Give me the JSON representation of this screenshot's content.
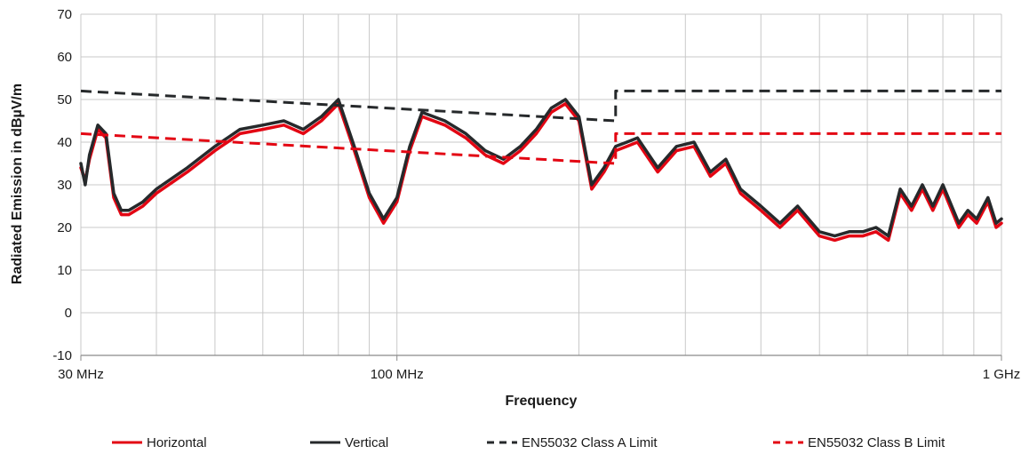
{
  "chart_data": {
    "type": "line",
    "title": "",
    "xlabel": "Frequency",
    "ylabel": "Radiated Emission in dBµV/m",
    "x_scale": "log",
    "xlim": [
      30,
      1000
    ],
    "ylim": [
      -10,
      70
    ],
    "grid": true,
    "legend_position": "bottom",
    "y_ticks": [
      -10,
      0,
      10,
      20,
      30,
      40,
      50,
      60,
      70
    ],
    "x_tick_labels": [
      {
        "value": 30,
        "label": "30 MHz"
      },
      {
        "value": 100,
        "label": "100 MHz"
      },
      {
        "value": 1000,
        "label": "1 GHz"
      }
    ],
    "x_minor_grid": [
      40,
      50,
      60,
      70,
      80,
      90,
      200,
      300,
      400,
      500,
      600,
      700,
      800,
      900
    ],
    "series": [
      {
        "name": "Horizontal",
        "color": "#e30613",
        "style": "solid",
        "x": [
          30,
          30.5,
          31,
          32,
          33,
          34,
          35,
          36,
          38,
          40,
          45,
          50,
          55,
          60,
          65,
          70,
          75,
          80,
          85,
          90,
          95,
          100,
          105,
          110,
          120,
          130,
          140,
          150,
          160,
          170,
          180,
          190,
          200,
          210,
          220,
          230,
          240,
          250,
          270,
          290,
          310,
          330,
          350,
          370,
          400,
          430,
          460,
          500,
          530,
          560,
          590,
          620,
          650,
          680,
          710,
          740,
          770,
          800,
          850,
          880,
          910,
          950,
          980,
          1000
        ],
        "y": [
          34,
          31,
          36,
          43,
          41,
          27,
          23,
          23,
          25,
          28,
          33,
          38,
          42,
          43,
          44,
          42,
          45,
          49,
          38,
          27,
          21,
          26,
          38,
          46,
          44,
          41,
          37,
          35,
          38,
          42,
          47,
          49,
          45,
          29,
          33,
          38,
          39,
          40,
          33,
          38,
          39,
          32,
          35,
          28,
          24,
          20,
          24,
          18,
          17,
          18,
          18,
          19,
          17,
          28,
          24,
          29,
          24,
          29,
          20,
          23,
          21,
          26,
          20,
          21
        ]
      },
      {
        "name": "Vertical",
        "color": "#26292b",
        "style": "solid",
        "x": [
          30,
          30.5,
          31,
          32,
          33,
          34,
          35,
          36,
          38,
          40,
          45,
          50,
          55,
          60,
          65,
          70,
          75,
          80,
          85,
          90,
          95,
          100,
          105,
          110,
          120,
          130,
          140,
          150,
          160,
          170,
          180,
          190,
          200,
          210,
          220,
          230,
          240,
          250,
          270,
          290,
          310,
          330,
          350,
          370,
          400,
          430,
          460,
          500,
          530,
          560,
          590,
          620,
          650,
          680,
          710,
          740,
          770,
          800,
          850,
          880,
          910,
          950,
          980,
          1000
        ],
        "y": [
          35,
          30,
          37,
          44,
          42,
          28,
          24,
          24,
          26,
          29,
          34,
          39,
          43,
          44,
          45,
          43,
          46,
          50,
          39,
          28,
          22,
          27,
          39,
          47,
          45,
          42,
          38,
          36,
          39,
          43,
          48,
          50,
          46,
          30,
          34,
          39,
          40,
          41,
          34,
          39,
          40,
          33,
          36,
          29,
          25,
          21,
          25,
          19,
          18,
          19,
          19,
          20,
          18,
          29,
          25,
          30,
          25,
          30,
          21,
          24,
          22,
          27,
          21,
          22
        ]
      },
      {
        "name": "EN55032 Class A Limit",
        "color": "#26292b",
        "style": "dashed",
        "x": [
          30,
          230,
          230,
          1000
        ],
        "y": [
          52,
          45,
          52,
          52
        ]
      },
      {
        "name": "EN55032 Class B Limit",
        "color": "#e30613",
        "style": "dashed",
        "x": [
          30,
          230,
          230,
          1000
        ],
        "y": [
          42,
          35,
          42,
          42
        ]
      }
    ]
  }
}
